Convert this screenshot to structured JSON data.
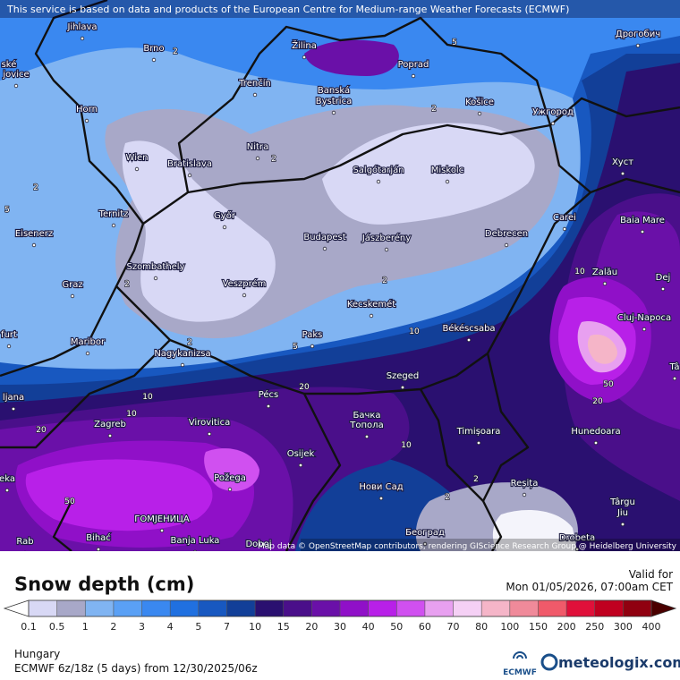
{
  "notice": "This service is based on data and products of the European Centre for Medium-range Weather Forecasts (ECMWF)",
  "attribution": "Map data © OpenStreetMap contributors, rendering GIScience Research Group @ Heidelberg University",
  "cities": [
    "Jihlava",
    "Brno",
    "Žilina",
    "Poprad",
    "Дрогобич",
    "ské",
    "jovice",
    "Trenčín",
    "Banská",
    "Bystrica",
    "Košice",
    "Ужгород",
    "Horn",
    "Nitra",
    "Хуст",
    "Wien",
    "Bratislava",
    "Salgótarján",
    "Miskolc",
    "Ternitz",
    "Győr",
    "Carei",
    "Baia Mare",
    "Eisenerz",
    "Budapest",
    "Jászberény",
    "Debrecen",
    "Szombathely",
    "Zalău",
    "Graz",
    "Veszprém",
    "Dej",
    "Cluj-Napoca",
    "Kecskemét",
    "furt",
    "Paks",
    "Békéscsaba",
    "Maribor",
    "Nagykanizsa",
    "Tâ",
    "Szeged",
    "Pécs",
    "ljana",
    "Zagreb",
    "Virovitica",
    "Бачка",
    "Топола",
    "Timișoara",
    "Hunedoara",
    "Osijek",
    "Požega",
    "eka",
    "Нови Сад",
    "Reșița",
    "Târgu",
    "Jiu",
    "ГОМЈЕНИЦА",
    "Bihać",
    "Banja Luka",
    "Doboj",
    "Београд",
    "Drobeta",
    "Rab"
  ],
  "contour_labels": [
    2,
    2,
    2,
    2,
    2,
    2,
    2,
    2,
    2,
    5,
    5,
    5,
    10,
    10,
    10,
    10,
    10,
    20,
    20,
    20,
    50,
    50
  ],
  "legend": {
    "title": "Snow depth (cm)",
    "valid_label": "Valid for",
    "valid_time": "Mon 01/05/2026, 07:00am CET",
    "ticks": [
      0.1,
      0.5,
      1,
      2,
      3,
      4,
      5,
      7,
      10,
      15,
      20,
      30,
      40,
      50,
      60,
      70,
      80,
      100,
      150,
      200,
      250,
      300,
      400
    ],
    "colors": [
      "#d8d8f5",
      "#a8a8c8",
      "#80b4f2",
      "#5aa0f5",
      "#3a88f0",
      "#2070e0",
      "#1858c0",
      "#123f98",
      "#2a1070",
      "#4a0f8a",
      "#6a10a8",
      "#9010c8",
      "#b820e8",
      "#d050f0",
      "#e8a0f0",
      "#f5d0f5",
      "#f5b5c8",
      "#f08a9a",
      "#f05a6a",
      "#e0103a",
      "#c00020",
      "#900010"
    ],
    "under_color": "#ffffff",
    "over_color": "#4a0000"
  },
  "footer": {
    "region": "Hungary",
    "model": "ECMWF 6z/18z (5 days) from 12/30/2025/06z",
    "ecmwf_logo": "ECMWF",
    "brand": "meteologix.com"
  }
}
